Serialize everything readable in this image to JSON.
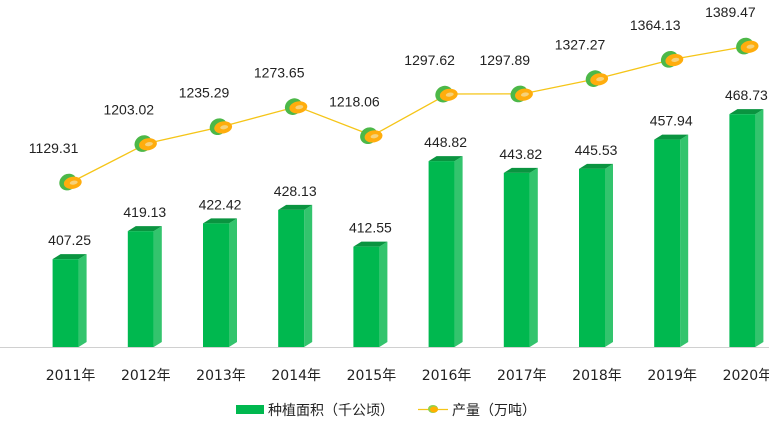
{
  "chart_data": {
    "type": "bar+line",
    "categories": [
      "2011年",
      "2012年",
      "2013年",
      "2014年",
      "2015年",
      "2016年",
      "2017年",
      "2018年",
      "2019年",
      "2020年"
    ],
    "series": [
      {
        "name": "种植面积（千公顷）",
        "type": "bar",
        "values": [
          407.25,
          419.13,
          422.42,
          428.13,
          412.55,
          448.82,
          443.82,
          445.53,
          457.94,
          468.73
        ],
        "labels": [
          "407.25",
          "419.13",
          "422.42",
          "428.13",
          "412.55",
          "448.82",
          "443.82",
          "445.53",
          "457.94",
          "468.73"
        ],
        "color": "#00b050",
        "ylim": [
          370,
          475
        ]
      },
      {
        "name": "产量（万吨）",
        "type": "line",
        "values": [
          1129.31,
          1203.02,
          1235.29,
          1273.65,
          1218.06,
          1297.62,
          1297.89,
          1327.27,
          1364.13,
          1389.47
        ],
        "labels": [
          "1129.31",
          "1203.02",
          "1235.29",
          "1273.65",
          "1218.06",
          "1297.62",
          "1297.89",
          "1327.27",
          "1364.13",
          "1389.47"
        ],
        "color": "#ffc000",
        "ylim": [
          900,
          1400
        ]
      }
    ],
    "legend": {
      "position": "bottom",
      "items": [
        "种植面积（千公顷）",
        "产量（万吨）"
      ]
    },
    "marker_icon": "papaya-icon",
    "colors": {
      "bar_front": "#00b84f",
      "bar_side": "#33c46d",
      "bar_top": "#0a9440",
      "line": "#f5c518",
      "axis": "#d0d0d0"
    }
  }
}
